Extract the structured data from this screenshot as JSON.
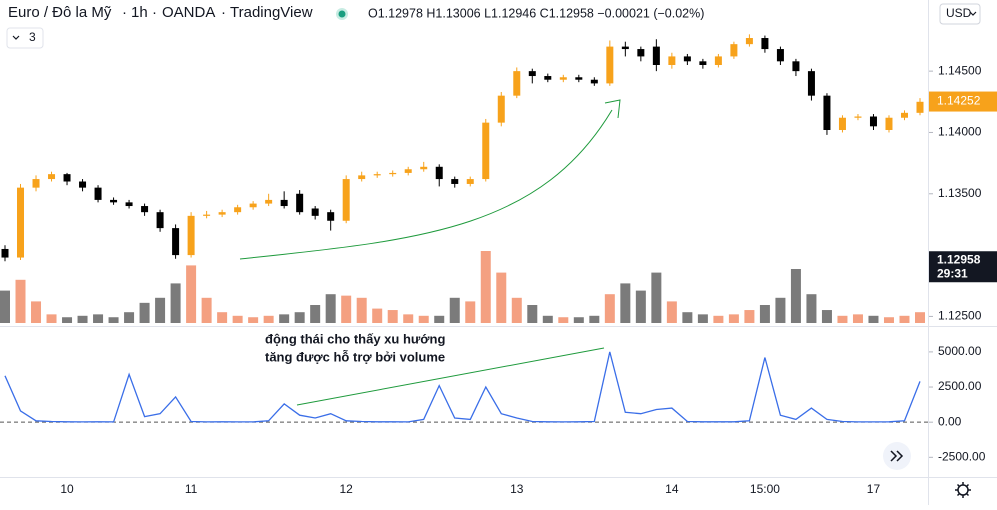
{
  "header": {
    "symbol": "Euro / Đô la Mỹ",
    "interval": "1h",
    "broker": "OANDA",
    "platform": "TradingView",
    "quote": "O1.12978  H1.13006  L1.12946  C1.12958  −0.00021 (−0.02%)",
    "indicator_count": 3,
    "currency": "USD"
  },
  "annotation": [
    "động thái cho thấy xu hướng",
    "tăng được hỗ trợ bởi volume"
  ],
  "chart_data": [
    {
      "type": "candlestick",
      "categories": [
        null,
        null,
        null,
        null,
        "10",
        null,
        null,
        null,
        null,
        null,
        null,
        null,
        "11",
        null,
        null,
        null,
        null,
        null,
        null,
        null,
        null,
        null,
        "12",
        null,
        null,
        null,
        null,
        null,
        null,
        null,
        null,
        null,
        null,
        "13",
        null,
        null,
        null,
        null,
        null,
        null,
        null,
        null,
        null,
        "14",
        null,
        null,
        null,
        null,
        null,
        "15:00",
        null,
        null,
        null,
        null,
        null,
        null,
        "17",
        null,
        null,
        null
      ],
      "open": [
        1.1305,
        1.1298,
        1.1355,
        1.1362,
        1.1366,
        1.136,
        1.1355,
        1.1345,
        1.1343,
        1.134,
        1.1335,
        1.1322,
        1.13,
        1.1332,
        1.1333,
        1.1335,
        1.1339,
        1.1342,
        1.1345,
        1.135,
        1.1338,
        1.1335,
        1.1328,
        1.1362,
        1.1365,
        1.1366,
        1.1367,
        1.137,
        1.1372,
        1.1362,
        1.1358,
        1.1362,
        1.1408,
        1.143,
        1.145,
        1.1446,
        1.1443,
        1.1445,
        1.1443,
        1.144,
        1.147,
        1.1468,
        1.147,
        1.1455,
        1.1462,
        1.1458,
        1.1455,
        1.1462,
        1.1472,
        1.1477,
        1.1468,
        1.1458,
        1.145,
        1.143,
        1.1402,
        1.1412,
        1.1413,
        1.1402,
        1.1412,
        1.1416
      ],
      "high": [
        1.1308,
        1.1358,
        1.1365,
        1.1368,
        1.1367,
        1.1362,
        1.1357,
        1.1347,
        1.1345,
        1.1342,
        1.1337,
        1.1325,
        1.1335,
        1.1336,
        1.1337,
        1.1341,
        1.1344,
        1.135,
        1.1352,
        1.1353,
        1.134,
        1.1337,
        1.1365,
        1.1368,
        1.1368,
        1.1369,
        1.1372,
        1.1376,
        1.1374,
        1.1364,
        1.1364,
        1.1411,
        1.1433,
        1.1453,
        1.1452,
        1.1448,
        1.1447,
        1.1447,
        1.1445,
        1.1475,
        1.1474,
        1.147,
        1.1476,
        1.1465,
        1.1464,
        1.146,
        1.1464,
        1.1474,
        1.148,
        1.1479,
        1.147,
        1.146,
        1.1452,
        1.1432,
        1.1414,
        1.1415,
        1.1415,
        1.1414,
        1.1418,
        1.1428
      ],
      "low": [
        1.1295,
        1.1296,
        1.1352,
        1.136,
        1.1357,
        1.1352,
        1.1343,
        1.1341,
        1.1338,
        1.1332,
        1.1319,
        1.1297,
        1.1298,
        1.133,
        1.1331,
        1.1333,
        1.1337,
        1.134,
        1.1338,
        1.1333,
        1.1329,
        1.132,
        1.1326,
        1.136,
        1.1363,
        1.1364,
        1.1365,
        1.1368,
        1.1356,
        1.1355,
        1.1356,
        1.136,
        1.1405,
        1.1428,
        1.144,
        1.1441,
        1.1441,
        1.1441,
        1.1438,
        1.1438,
        1.1462,
        1.1458,
        1.145,
        1.1452,
        1.1455,
        1.1452,
        1.1453,
        1.146,
        1.147,
        1.1465,
        1.1455,
        1.1446,
        1.1426,
        1.1398,
        1.14,
        1.141,
        1.1402,
        1.14,
        1.141,
        1.1414
      ],
      "close": [
        1.1298,
        1.1355,
        1.1362,
        1.1366,
        1.136,
        1.1355,
        1.1345,
        1.1343,
        1.134,
        1.1335,
        1.1322,
        1.13,
        1.1332,
        1.1333,
        1.1335,
        1.1339,
        1.1342,
        1.1345,
        1.134,
        1.1335,
        1.1332,
        1.1328,
        1.1362,
        1.1365,
        1.1366,
        1.1367,
        1.137,
        1.1372,
        1.1362,
        1.1358,
        1.1362,
        1.1408,
        1.143,
        1.145,
        1.1446,
        1.1443,
        1.1445,
        1.1443,
        1.144,
        1.147,
        1.1468,
        1.1462,
        1.1455,
        1.1462,
        1.1458,
        1.1455,
        1.1462,
        1.1472,
        1.1477,
        1.1468,
        1.1458,
        1.145,
        1.143,
        1.1402,
        1.1412,
        1.1413,
        1.1405,
        1.1412,
        1.1416,
        1.1425
      ],
      "volume": [
        45,
        60,
        30,
        12,
        8,
        10,
        12,
        8,
        15,
        28,
        35,
        55,
        80,
        35,
        15,
        10,
        8,
        10,
        12,
        15,
        25,
        40,
        38,
        35,
        20,
        18,
        12,
        10,
        10,
        35,
        30,
        100,
        70,
        35,
        25,
        10,
        8,
        8,
        10,
        40,
        55,
        45,
        70,
        30,
        15,
        12,
        10,
        12,
        18,
        25,
        35,
        75,
        40,
        18,
        10,
        12,
        10,
        8,
        10,
        15
      ],
      "up_color": "#f7a21b",
      "down_color": "#000000",
      "volume_up_color": "#f4a081",
      "volume_down_color": "#7b7b7b",
      "ylim": [
        1.1243,
        1.1508
      ],
      "yticks": [
        {
          "value": 1.145,
          "label": "1.14500"
        },
        {
          "value": 1.14,
          "label": "1.14000"
        },
        {
          "value": 1.135,
          "label": "1.13500"
        },
        {
          "value": 1.125,
          "label": "1.12500"
        }
      ],
      "last_price": 1.14252,
      "marker_price": 1.12958,
      "countdown": "29:31"
    },
    {
      "type": "line",
      "color": "#3a6ee8",
      "zero_line": true,
      "values": [
        3300,
        800,
        100,
        50,
        30,
        20,
        30,
        20,
        3400,
        400,
        600,
        1800,
        50,
        20,
        30,
        20,
        20,
        100,
        1300,
        500,
        300,
        600,
        100,
        50,
        30,
        30,
        20,
        200,
        2600,
        300,
        200,
        2500,
        600,
        300,
        50,
        30,
        20,
        30,
        50,
        5000,
        700,
        600,
        900,
        1000,
        50,
        30,
        30,
        30,
        100,
        4600,
        500,
        200,
        1000,
        200,
        50,
        20,
        20,
        30,
        100,
        2900
      ],
      "ylim": [
        -3900,
        6700
      ],
      "yticks": [
        {
          "value": 5000,
          "label": "5000.00"
        },
        {
          "value": 2500,
          "label": "2500.00"
        },
        {
          "value": 0,
          "label": "0.00"
        },
        {
          "value": -2500,
          "label": "-2500.00"
        }
      ]
    }
  ]
}
